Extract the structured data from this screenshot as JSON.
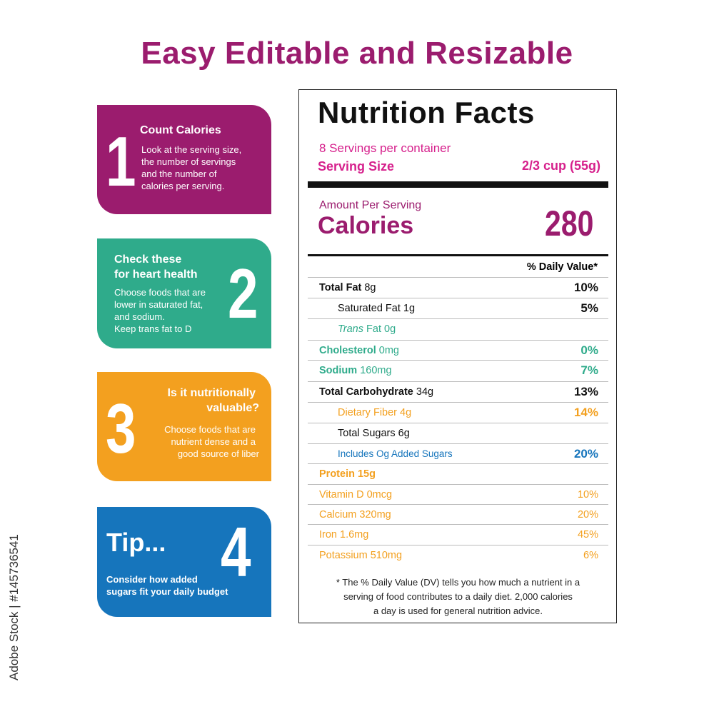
{
  "headline": "Easy Editable and Resizable",
  "side_id": "Adobe Stock | #145736541",
  "colors": {
    "magenta": "#9b1c6e",
    "teal": "#2fab8b",
    "orange": "#f3a01f",
    "blue": "#1675bc",
    "pink": "#d6208c"
  },
  "cards": [
    {
      "num": "1",
      "title": "Count Calories",
      "lines": [
        "Look at the serving size,",
        "the number of servings",
        "and the number of",
        "calories per serving."
      ]
    },
    {
      "num": "2",
      "title_lines": [
        "Check these",
        "for heart health"
      ],
      "lines": [
        "Choose foods that are",
        "lower in saturated fat,",
        "and sodium.",
        "Keep trans fat to D"
      ]
    },
    {
      "num": "3",
      "title_lines": [
        "Is it nutritionally",
        "valuable?"
      ],
      "lines": [
        "Choose foods that are",
        "nutrient dense and a",
        "good source of liber"
      ]
    },
    {
      "num": "4",
      "title": "Tip...",
      "lines": [
        "Consider how added",
        "sugars fit your daily budget"
      ]
    }
  ],
  "label": {
    "title": "Nutrition Facts",
    "servings": "8 Servings per container",
    "serving_size_label": "Serving Size",
    "serving_size_value": "2/3 cup (55g)",
    "amount_per_serving": "Amount Per Serving",
    "calories_label": "Calories",
    "calories_value": "280",
    "dv_header": "% Daily Value*",
    "rows": [
      {
        "bold": "Total Fat",
        "name": " 8g",
        "pct": "10%"
      },
      {
        "name": "Saturated Fat 1g",
        "pct": "5%"
      },
      {
        "italic": "Trans",
        "name": " Fat 0g",
        "pct": ""
      },
      {
        "bold": "Cholesterol",
        "name": " 0mg",
        "pct": "0%"
      },
      {
        "bold": "Sodium",
        "name": " 160mg",
        "pct": "7%"
      },
      {
        "bold": "Total Carbohydrate",
        "name": " 34g",
        "pct": "13%"
      },
      {
        "name": "Dietary Fiber 4g",
        "pct": "14%"
      },
      {
        "name": "Total Sugars 6g",
        "pct": ""
      },
      {
        "name": "Includes Og Added Sugars",
        "pct": "20%"
      },
      {
        "bold": "Protein 15g",
        "name": "",
        "pct": ""
      },
      {
        "name": "Vitamin D 0mcg",
        "pct": "10%"
      },
      {
        "name": "Calcium 320mg",
        "pct": "20%"
      },
      {
        "name": "Iron 1.6mg",
        "pct": "45%"
      },
      {
        "name": "Potassium 510mg",
        "pct": "6%"
      }
    ],
    "footnote_lines": [
      "* The % Daily Value (DV) tells you how much a nutrient in a",
      "serving of food contributes to a daily diet. 2,000 calories",
      "a day is used for general nutrition advice."
    ]
  }
}
